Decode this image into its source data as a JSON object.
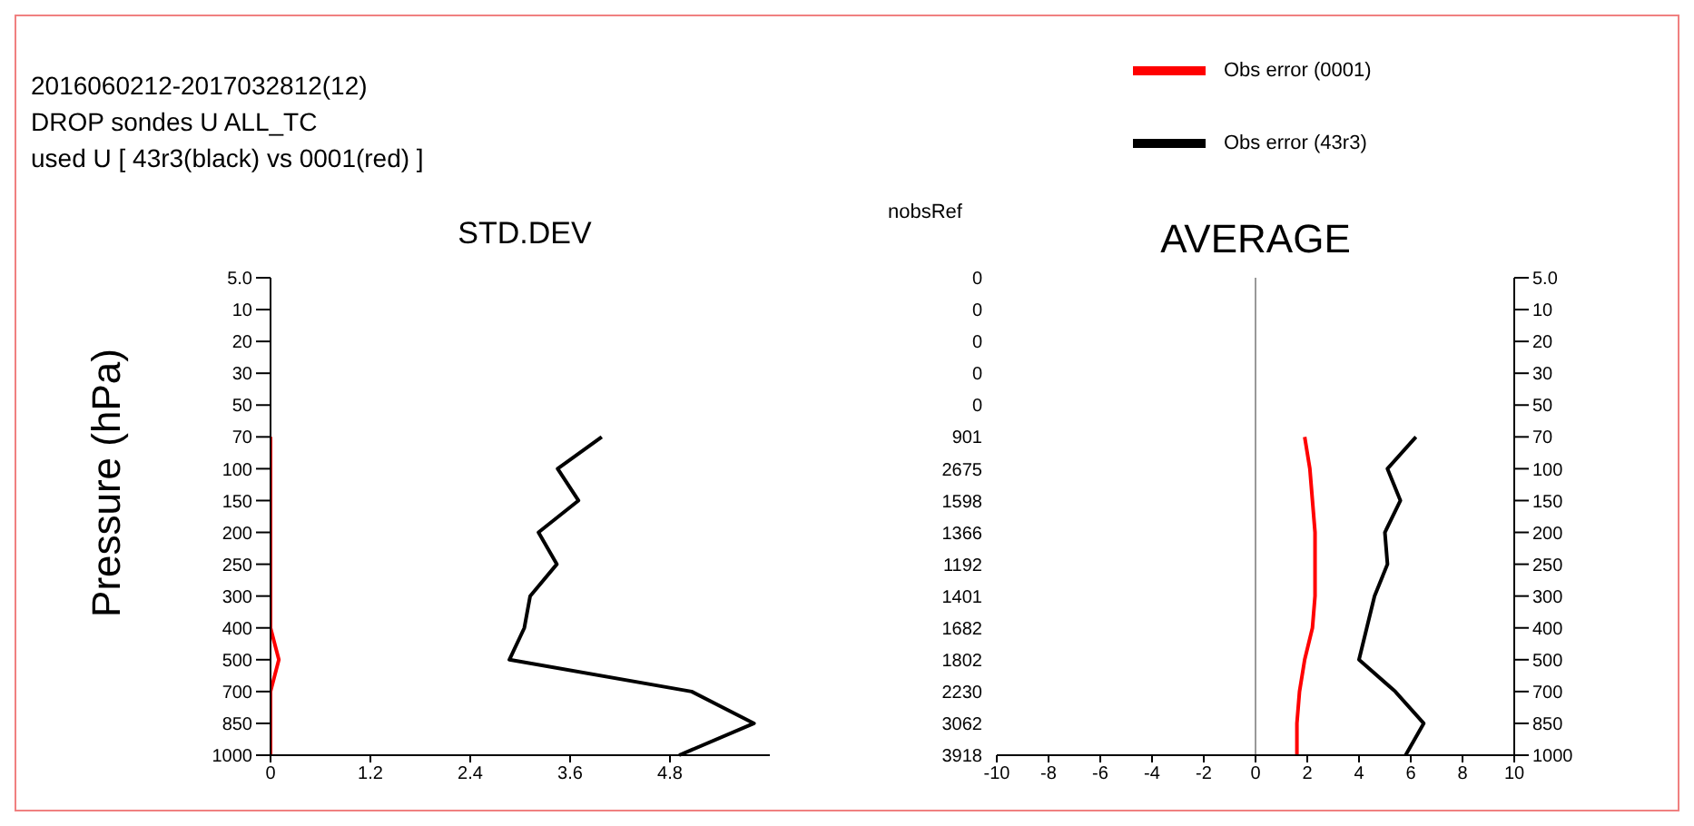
{
  "chart_data": [
    {
      "type": "line",
      "orientation": "horizontal",
      "title": "STD.DEV",
      "ylabel": "Pressure (hPa)",
      "annotations": [
        "2016060212-2017032812(12)",
        "DROP sondes U  ALL_TC",
        "used U   [ 43r3(black) vs 0001(red) ]"
      ],
      "categories": [
        "5.0",
        "10",
        "20",
        "30",
        "50",
        "70",
        "100",
        "150",
        "200",
        "250",
        "300",
        "400",
        "500",
        "700",
        "850",
        "1000"
      ],
      "xlim": [
        0,
        6
      ],
      "xticks": [
        0,
        1.2,
        2.4,
        3.6,
        4.8
      ],
      "grid": false,
      "legend": false,
      "marker": "none",
      "series": [
        {
          "color": "#000000",
          "values": [
            null,
            null,
            null,
            null,
            null,
            3.98,
            3.45,
            3.7,
            3.22,
            3.44,
            3.12,
            3.05,
            2.87,
            5.06,
            5.81,
            4.91
          ]
        },
        {
          "color": "#ff0000",
          "values": [
            null,
            null,
            null,
            null,
            null,
            0,
            0,
            0,
            0,
            0,
            0,
            0,
            0.1,
            0,
            0,
            0
          ]
        }
      ]
    },
    {
      "type": "line",
      "orientation": "horizontal",
      "title": "AVERAGE",
      "y2label": "nobsRef",
      "categories": [
        "5.0",
        "10",
        "20",
        "30",
        "50",
        "70",
        "100",
        "150",
        "200",
        "250",
        "300",
        "400",
        "500",
        "700",
        "850",
        "1000"
      ],
      "y2_categories": [
        "0",
        "0",
        "0",
        "0",
        "0",
        "901",
        "2675",
        "1598",
        "1366",
        "1192",
        "1401",
        "1682",
        "1802",
        "2230",
        "3062",
        "3918"
      ],
      "xlim": [
        -10,
        10
      ],
      "xticks": [
        -10,
        -8,
        -6,
        -4,
        -2,
        0,
        2,
        4,
        6,
        8,
        10
      ],
      "grid": false,
      "legend": "top right",
      "marker": "none",
      "ref_lines": [
        {
          "axis": "x",
          "value": 0,
          "color": "#999999"
        }
      ],
      "series": [
        {
          "name": "Obs error (43r3)",
          "color": "#000000",
          "values": [
            null,
            null,
            null,
            null,
            null,
            6.2,
            5.1,
            5.6,
            5.0,
            5.1,
            4.6,
            4.3,
            4.0,
            5.4,
            6.5,
            5.8
          ]
        },
        {
          "name": "Obs error (0001)",
          "color": "#ff0000",
          "values": [
            null,
            null,
            null,
            null,
            null,
            1.9,
            2.1,
            2.2,
            2.3,
            2.3,
            2.3,
            2.2,
            1.9,
            1.7,
            1.6,
            1.6
          ]
        }
      ]
    }
  ]
}
